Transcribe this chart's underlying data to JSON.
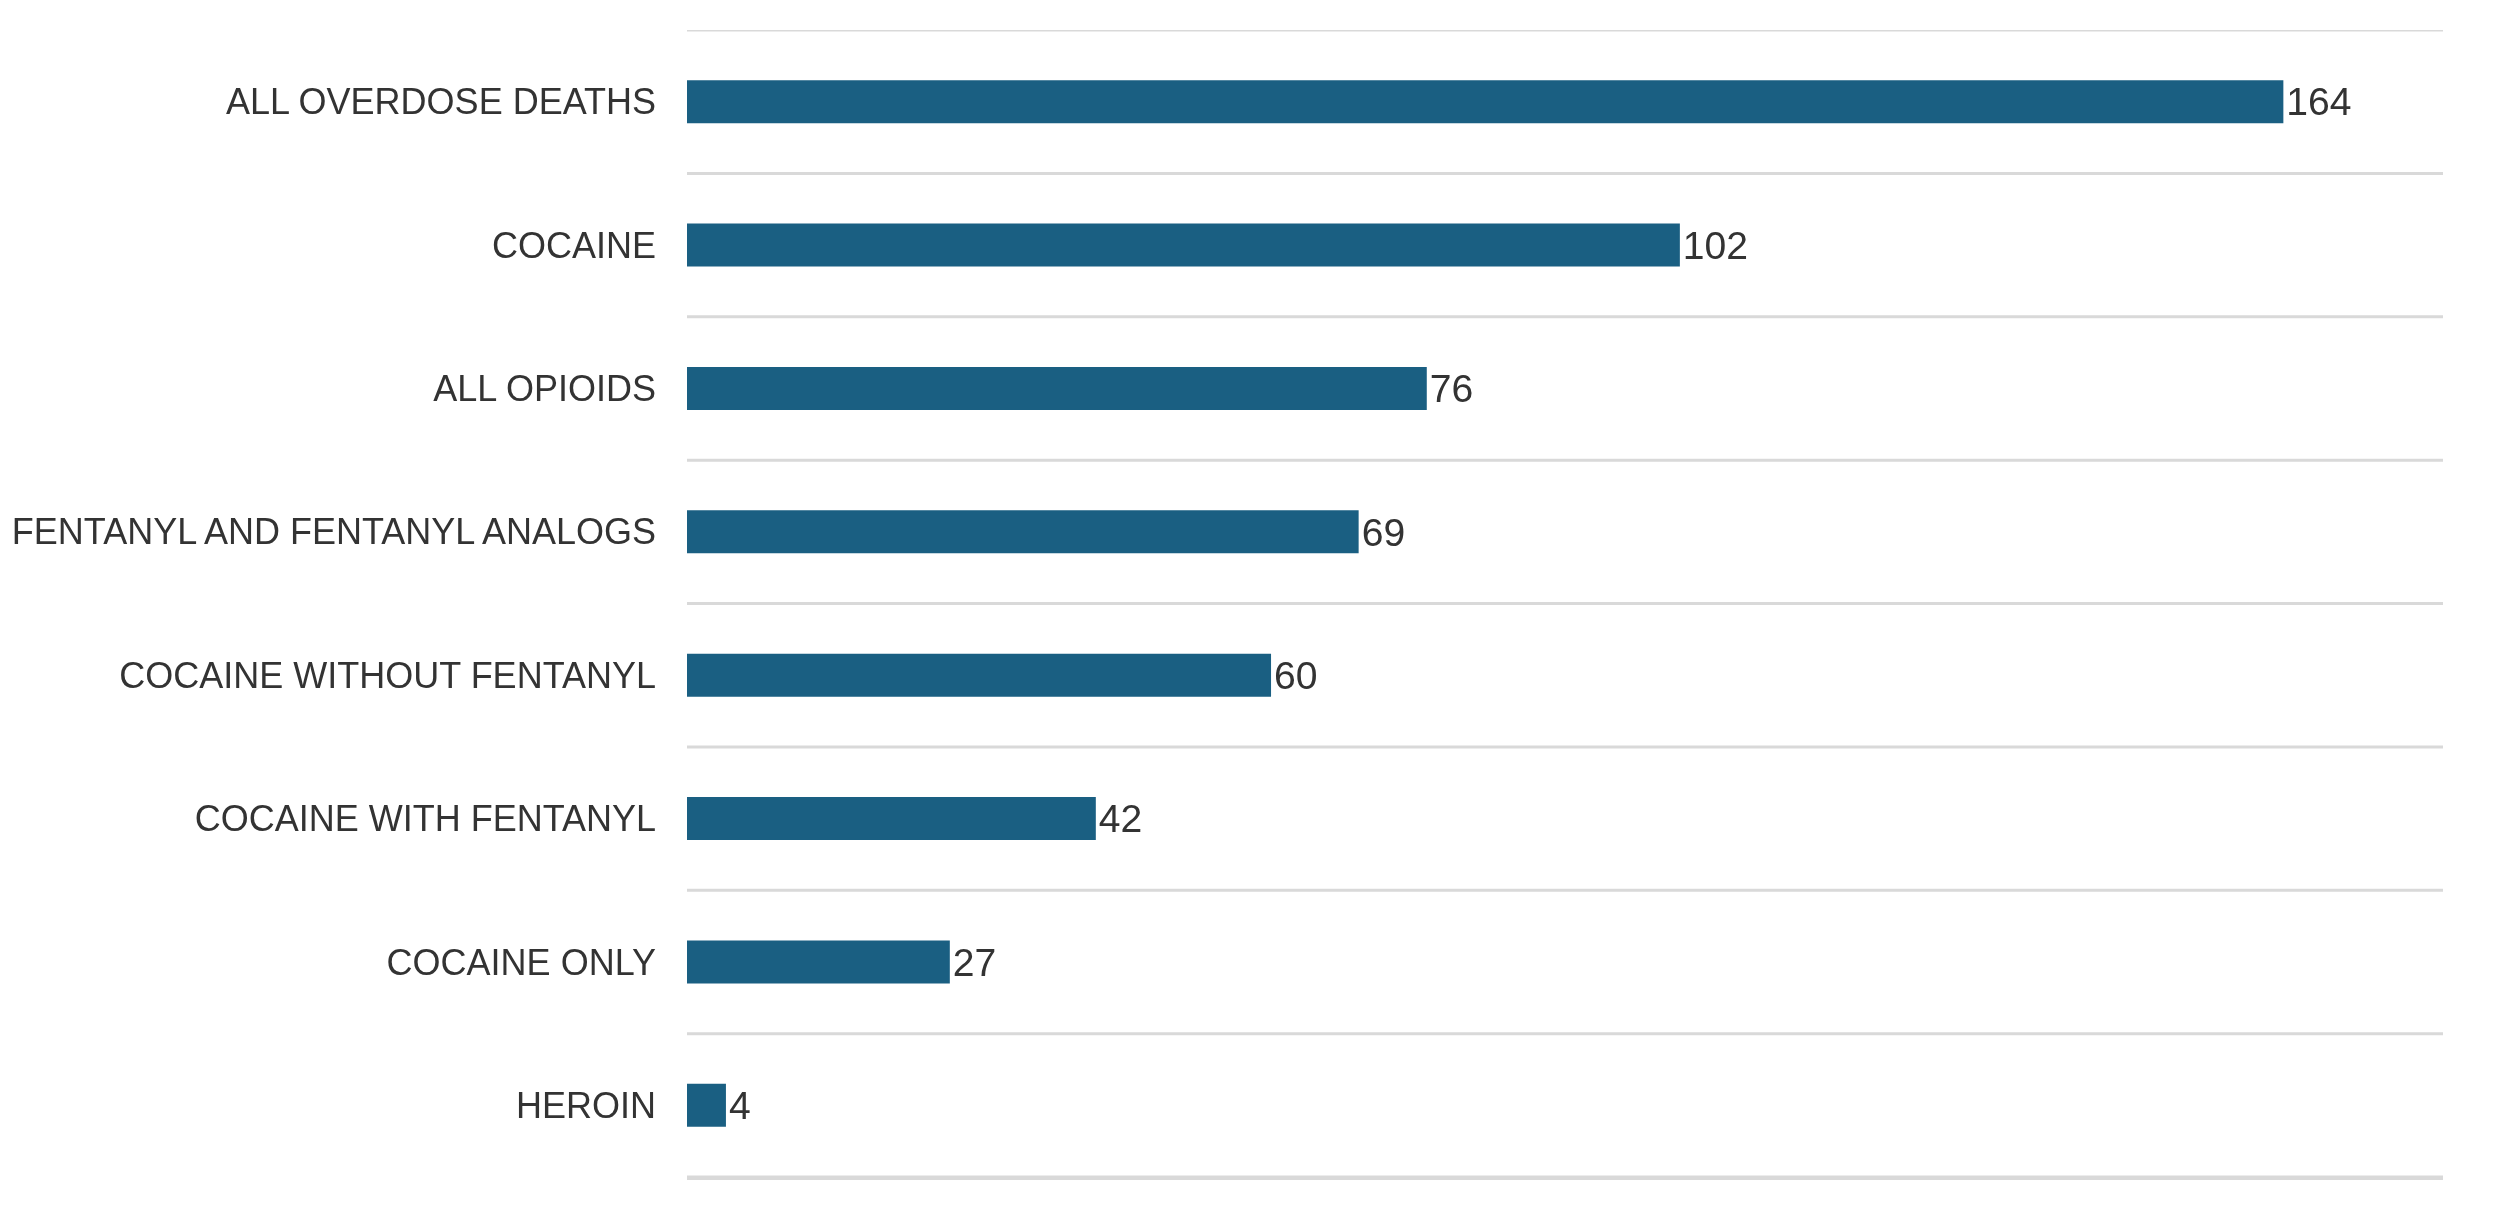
{
  "chart_data": {
    "type": "bar",
    "orientation": "horizontal",
    "categories": [
      "ALL OVERDOSE DEATHS",
      "COCAINE",
      "ALL OPIOIDS",
      "FENTANYL AND FENTANYL ANALOGS",
      "COCAINE WITHOUT FENTANYL",
      "COCAINE WITH FENTANYL",
      "COCAINE ONLY",
      "HEROIN"
    ],
    "values": [
      164,
      102,
      76,
      69,
      60,
      42,
      27,
      4
    ],
    "color": "#1a5f82",
    "data_labels": true,
    "grid": "y",
    "tick_labels": "y"
  }
}
